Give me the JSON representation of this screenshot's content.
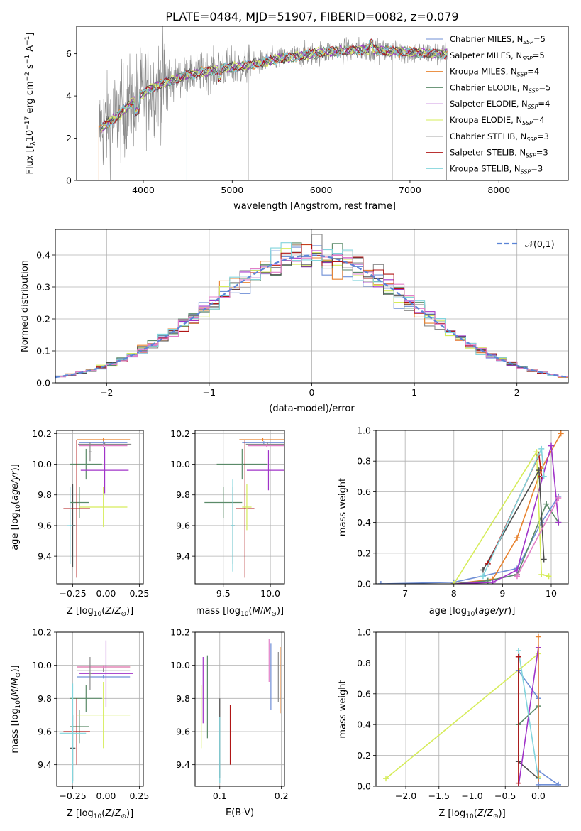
{
  "figure_title": "PLATE=0484, MJD=51907, FIBERID=0082, z=0.079",
  "colors": {
    "Chabrier MILES": "#6f8fd6",
    "Salpeter MILES": "#8a8a8a",
    "Kroupa MILES": "#e8822e",
    "Chabrier ELODIE": "#5a8a68",
    "Salpeter ELODIE": "#a033c8",
    "Kroupa ELODIE": "#d6ec5a",
    "Chabrier STELIB": "#4e4e4e",
    "Salpeter STELIB": "#b01616",
    "Kroupa STELIB": "#82d4dc",
    "pink": "#e27fc8",
    "normal_curve": "#5b84d6"
  },
  "chart_data": [
    {
      "id": "spectrum",
      "type": "line",
      "xlabel": "wavelength [Angstrom, rest frame]",
      "ylabel": "Flux [f_λ 10^-17 erg cm^-2 s^-1 A^-1]",
      "xlim": [
        3250,
        8780
      ],
      "ylim": [
        0,
        7.3
      ],
      "xticks": [
        4000,
        5000,
        6000,
        7000,
        8000
      ],
      "yticks": [
        0,
        2,
        4,
        6
      ],
      "grid": false,
      "legend_position": "top-right",
      "data_series": {
        "x": [
          3500,
          3700,
          3900,
          4000,
          4100,
          4300,
          4500,
          4700,
          4900,
          5100,
          5300,
          5500,
          5700,
          5900,
          6100,
          6300,
          6500,
          6700,
          6900,
          7100,
          7300,
          7420
        ],
        "y": [
          2.4,
          3.0,
          3.8,
          4.1,
          4.4,
          4.7,
          5.0,
          5.15,
          5.3,
          5.4,
          5.55,
          5.75,
          5.85,
          6.0,
          6.1,
          6.15,
          6.2,
          6.15,
          6.1,
          6.05,
          6.0,
          6.0
        ]
      },
      "series": [
        {
          "name": "Chabrier MILES, N_SSP=5",
          "label": "Chabrier MILES, N",
          "sub": "SSP",
          "tail": "=5"
        },
        {
          "name": "Salpeter MILES, N_SSP=5",
          "label": "Salpeter MILES, N",
          "sub": "SSP",
          "tail": "=5"
        },
        {
          "name": "Kroupa MILES, N_SSP=4",
          "label": "Kroupa MILES, N",
          "sub": "SSP",
          "tail": "=4"
        },
        {
          "name": "Chabrier ELODIE, N_SSP=5",
          "label": "Chabrier ELODIE, N",
          "sub": "SSP",
          "tail": "=5"
        },
        {
          "name": "Salpeter ELODIE, N_SSP=4",
          "label": "Salpeter ELODIE, N",
          "sub": "SSP",
          "tail": "=4"
        },
        {
          "name": "Kroupa ELODIE, N_SSP=4",
          "label": "Kroupa ELODIE, N",
          "sub": "SSP",
          "tail": "=4"
        },
        {
          "name": "Chabrier STELIB, N_SSP=3",
          "label": "Chabrier STELIB, N",
          "sub": "SSP",
          "tail": "=3"
        },
        {
          "name": "Salpeter STELIB, N_SSP=3",
          "label": "Salpeter STELIB, N",
          "sub": "SSP",
          "tail": "=3"
        },
        {
          "name": "Kroupa STELIB, N_SSP=3",
          "label": "Kroupa STELIB, N",
          "sub": "SSP",
          "tail": "=3"
        }
      ]
    },
    {
      "id": "residuals",
      "type": "line",
      "xlabel": "(data-model)/error",
      "ylabel": "Normed distribution",
      "xlim": [
        -2.5,
        2.5
      ],
      "ylim": [
        0,
        0.48
      ],
      "xticks": [
        -2,
        -1,
        0,
        1,
        2
      ],
      "yticks": [
        0.0,
        0.1,
        0.2,
        0.3,
        0.4
      ],
      "grid": true,
      "legend_position": "top-right",
      "legend": [
        "N(0,1)"
      ],
      "histogram": {
        "bin_width": 0.1,
        "x_start": -2.5,
        "x_end": 2.5
      },
      "normal_curve": {
        "mean": 0,
        "sigma": 1
      }
    },
    {
      "id": "Z_vs_age",
      "type": "scatter",
      "xlabel": "Z [log10(Z/Z☉)]",
      "ylabel": "age [log10(age/yr)]",
      "xlim": [
        -0.37,
        0.28
      ],
      "ylim": [
        9.22,
        10.22
      ],
      "xticks": [
        -0.25,
        0.0,
        0.25
      ],
      "yticks": [
        9.4,
        9.6,
        9.8,
        10.0,
        10.2
      ],
      "grid": true,
      "errorbars": [
        {
          "series": "Kroupa MILES",
          "x": -0.02,
          "xerr": 0.2,
          "y": 10.16,
          "yerr": 0.01
        },
        {
          "series": "Chabrier MILES",
          "x": -0.02,
          "xerr": 0.18,
          "y": 10.14,
          "yerr": 0.01
        },
        {
          "series": "Salpeter MILES",
          "x": -0.01,
          "xerr": 0.2,
          "y": 10.13,
          "yerr": 0.01
        },
        {
          "series": "pink",
          "x": -0.02,
          "xerr": 0.18,
          "y": 10.12,
          "yerr": 0.01
        },
        {
          "series": "Chabrier ELODIE",
          "x": -0.15,
          "xerr": 0.12,
          "y": 10.0,
          "yerr": 0.1
        },
        {
          "series": "Salpeter ELODIE",
          "x": -0.01,
          "xerr": 0.18,
          "y": 9.96,
          "yerr": 0.15
        },
        {
          "series": "Salpeter MILES",
          "x": -0.12,
          "xerr": 0.01,
          "y": 10.08,
          "yerr": 0.06
        },
        {
          "series": "Chabrier STELIB",
          "x": -0.25,
          "xerr": 0.02,
          "y": 9.6,
          "yerr": 0.27
        },
        {
          "series": "Chabrier ELODIE",
          "x": -0.2,
          "xerr": 0.07,
          "y": 9.75,
          "yerr": 0.1
        },
        {
          "series": "Salpeter STELIB",
          "x": -0.22,
          "xerr": 0.1,
          "y": 9.71,
          "yerr": 0.45
        },
        {
          "series": "Kroupa ELODIE",
          "x": -0.02,
          "xerr": 0.18,
          "y": 9.72,
          "yerr": 0.13
        },
        {
          "series": "Kroupa STELIB",
          "x": -0.27,
          "xerr": 0.02,
          "y": 9.6,
          "yerr": 0.25
        }
      ]
    },
    {
      "id": "mass_vs_age",
      "type": "scatter",
      "xlabel": "mass [log10(M/M☉)]",
      "ylabel": "",
      "xlim": [
        9.2,
        10.15
      ],
      "ylim": [
        9.22,
        10.22
      ],
      "xticks": [
        9.5,
        10.0
      ],
      "yticks": [
        9.4,
        9.6,
        9.8,
        10.0,
        10.2
      ],
      "grid": true,
      "errorbars": [
        {
          "series": "Kroupa MILES",
          "x": 9.92,
          "xerr": 0.25,
          "y": 10.16,
          "yerr": 0.01
        },
        {
          "series": "Chabrier MILES",
          "x": 9.93,
          "xerr": 0.23,
          "y": 10.14,
          "yerr": 0.01
        },
        {
          "series": "Salpeter MILES",
          "x": 9.97,
          "xerr": 0.23,
          "y": 10.13,
          "yerr": 0.01
        },
        {
          "series": "pink",
          "x": 9.96,
          "xerr": 0.2,
          "y": 10.12,
          "yerr": 0.01
        },
        {
          "series": "Chabrier ELODIE",
          "x": 9.7,
          "xerr": 0.27,
          "y": 10.0,
          "yerr": 0.1
        },
        {
          "series": "Salpeter ELODIE",
          "x": 9.98,
          "xerr": 0.23,
          "y": 9.96,
          "yerr": 0.13
        },
        {
          "series": "Chabrier STELIB",
          "x": 9.6,
          "xerr": 0.02,
          "y": 9.6,
          "yerr": 0.25
        },
        {
          "series": "Chabrier ELODIE",
          "x": 9.5,
          "xerr": 0.2,
          "y": 9.75,
          "yerr": 0.1
        },
        {
          "series": "Salpeter STELIB",
          "x": 9.73,
          "xerr": 0.1,
          "y": 9.71,
          "yerr": 0.45
        },
        {
          "series": "Kroupa ELODIE",
          "x": 9.75,
          "xerr": 0.05,
          "y": 9.72,
          "yerr": 0.15
        },
        {
          "series": "Kroupa STELIB",
          "x": 9.6,
          "xerr": 0.02,
          "y": 9.6,
          "yerr": 0.3
        }
      ]
    },
    {
      "id": "age_vs_weight",
      "type": "line",
      "xlabel": "age [log10(age/yr)]",
      "ylabel": "mass weight",
      "xlim": [
        6.4,
        10.35
      ],
      "ylim": [
        0,
        1.0
      ],
      "xticks": [
        7,
        8,
        9,
        10
      ],
      "yticks": [
        0.0,
        0.2,
        0.4,
        0.6,
        0.8,
        1.0
      ],
      "grid": true,
      "lines": [
        {
          "series": "Chabrier MILES",
          "x": [
            6.5,
            8.0,
            9.3,
            9.8,
            10.15
          ],
          "y": [
            0.0,
            0.01,
            0.1,
            0.4,
            0.57
          ]
        },
        {
          "series": "Kroupa MILES",
          "x": [
            8.0,
            8.8,
            9.3,
            9.8,
            10.2
          ],
          "y": [
            0.0,
            0.03,
            0.3,
            0.75,
            0.98
          ]
        },
        {
          "series": "Chabrier ELODIE",
          "x": [
            8.0,
            8.7,
            9.3,
            9.9,
            10.15
          ],
          "y": [
            0.0,
            0.02,
            0.06,
            0.52,
            0.4
          ]
        },
        {
          "series": "Salpeter ELODIE",
          "x": [
            8.0,
            8.8,
            9.3,
            10.0,
            10.15
          ],
          "y": [
            0.0,
            0.01,
            0.09,
            0.9,
            0.4
          ]
        },
        {
          "series": "Kroupa ELODIE",
          "x": [
            8.0,
            9.7,
            9.8,
            9.95
          ],
          "y": [
            0.0,
            0.86,
            0.06,
            0.05
          ]
        },
        {
          "series": "Chabrier STELIB",
          "x": [
            8.6,
            9.75,
            9.85
          ],
          "y": [
            0.09,
            0.74,
            0.16
          ]
        },
        {
          "series": "Salpeter STELIB",
          "x": [
            8.7,
            9.75,
            9.8
          ],
          "y": [
            0.13,
            0.84,
            0.7
          ]
        },
        {
          "series": "Kroupa STELIB",
          "x": [
            8.6,
            9.8,
            9.85
          ],
          "y": [
            0.05,
            0.88,
            0.7
          ]
        },
        {
          "series": "pink",
          "x": [
            9.3,
            10.15
          ],
          "y": [
            0.05,
            0.56
          ]
        }
      ]
    },
    {
      "id": "Z_vs_mass",
      "type": "scatter",
      "xlabel": "Z [log10(Z/Z☉)]",
      "ylabel": "mass [log10(M/M☉)]",
      "xlim": [
        -0.37,
        0.28
      ],
      "ylim": [
        9.27,
        10.2
      ],
      "xticks": [
        -0.25,
        0.0,
        0.25
      ],
      "yticks": [
        9.4,
        9.6,
        9.8,
        10.0,
        10.2
      ],
      "grid": true,
      "errorbars": [
        {
          "series": "Kroupa MILES",
          "x": -0.02,
          "xerr": 0.2,
          "y": 9.99,
          "yerr": 0.01
        },
        {
          "series": "Chabrier MILES",
          "x": -0.02,
          "xerr": 0.2,
          "y": 9.93,
          "yerr": 0.01
        },
        {
          "series": "Salpeter MILES",
          "x": -0.02,
          "xerr": 0.2,
          "y": 9.97,
          "yerr": 0.01
        },
        {
          "series": "pink",
          "x": -0.02,
          "xerr": 0.2,
          "y": 9.99,
          "yerr": 0.01
        },
        {
          "series": "Chabrier ELODIE",
          "x": -0.15,
          "xerr": 0.12,
          "y": 9.8,
          "yerr": 0.08
        },
        {
          "series": "Salpeter ELODIE",
          "x": 0.0,
          "xerr": 0.2,
          "y": 9.95,
          "yerr": 0.2
        },
        {
          "series": "Salpeter MILES",
          "x": -0.12,
          "xerr": 0.01,
          "y": 9.95,
          "yerr": 0.1
        },
        {
          "series": "Chabrier STELIB",
          "x": -0.25,
          "xerr": 0.02,
          "y": 9.5,
          "yerr": 0.2
        },
        {
          "series": "Chabrier ELODIE",
          "x": -0.2,
          "xerr": 0.07,
          "y": 9.63,
          "yerr": 0.1
        },
        {
          "series": "Salpeter STELIB",
          "x": -0.22,
          "xerr": 0.1,
          "y": 9.6,
          "yerr": 0.2
        },
        {
          "series": "Kroupa ELODIE",
          "x": -0.02,
          "xerr": 0.2,
          "y": 9.7,
          "yerr": 0.2
        },
        {
          "series": "Kroupa STELIB",
          "x": -0.25,
          "xerr": 0.1,
          "y": 9.59,
          "yerr": 0.3
        }
      ]
    },
    {
      "id": "ebv_vs_mass",
      "type": "scatter",
      "xlabel": "E(B-V)",
      "ylabel": "",
      "xlim": [
        0.06,
        0.205
      ],
      "ylim": [
        9.27,
        10.2
      ],
      "xticks": [
        0.1,
        0.2
      ],
      "yticks": [
        9.4,
        9.6,
        9.8,
        10.0,
        10.2
      ],
      "grid": true,
      "errorbars": [
        {
          "series": "Kroupa ELODIE",
          "x": 0.07,
          "y": 9.69,
          "yerr": 0.19
        },
        {
          "series": "Salpeter ELODIE",
          "x": 0.073,
          "y": 9.85,
          "yerr": 0.2
        },
        {
          "series": "Chabrier ELODIE",
          "x": 0.08,
          "y": 9.81,
          "yerr": 0.25
        },
        {
          "series": "Chabrier STELIB",
          "x": 0.1,
          "y": 9.56,
          "yerr": 0.24
        },
        {
          "series": "Kroupa STELIB",
          "x": 0.1,
          "y": 9.49,
          "yerr": 0.2
        },
        {
          "series": "Salpeter STELIB",
          "x": 0.117,
          "y": 9.58,
          "yerr": 0.18
        },
        {
          "series": "pink",
          "x": 0.18,
          "y": 10.03,
          "yerr": 0.13
        },
        {
          "series": "Chabrier MILES",
          "x": 0.183,
          "y": 9.93,
          "yerr": 0.2
        },
        {
          "series": "Salpeter MILES",
          "x": 0.195,
          "y": 9.93,
          "yerr": 0.15
        },
        {
          "series": "Kroupa MILES",
          "x": 0.198,
          "y": 9.91,
          "yerr": 0.2
        }
      ]
    },
    {
      "id": "Z_vs_weight",
      "type": "line",
      "xlabel": "Z [log10(Z/Z☉)]",
      "ylabel": "mass weight",
      "xlim": [
        -2.45,
        0.45
      ],
      "ylim": [
        0,
        1.0
      ],
      "xticks": [
        -2.0,
        -1.5,
        -1.0,
        -0.5,
        0.0
      ],
      "yticks": [
        0.0,
        0.2,
        0.4,
        0.6,
        0.8,
        1.0
      ],
      "grid": true,
      "lines": [
        {
          "series": "Kroupa ELODIE",
          "x": [
            -2.3,
            0.0,
            0.0
          ],
          "y": [
            0.05,
            0.86,
            0.06
          ]
        },
        {
          "series": "Chabrier MILES",
          "x": [
            -0.3,
            0.0,
            0.0,
            0.3
          ],
          "y": [
            0.75,
            0.57,
            0.1,
            0.01
          ]
        },
        {
          "series": "Chabrier STELIB",
          "x": [
            -0.3,
            -0.3,
            0.0
          ],
          "y": [
            0.84,
            0.16,
            0.05
          ]
        },
        {
          "series": "Chabrier ELODIE",
          "x": [
            -0.3,
            0.0,
            0.0
          ],
          "y": [
            0.4,
            0.52,
            0.0
          ]
        },
        {
          "series": "Salpeter ELODIE",
          "x": [
            -0.3,
            0.0,
            0.0
          ],
          "y": [
            0.0,
            0.9,
            0.0
          ]
        },
        {
          "series": "Kroupa STELIB",
          "x": [
            -0.3,
            0.0
          ],
          "y": [
            0.88,
            0.05
          ]
        },
        {
          "series": "Kroupa MILES",
          "x": [
            0.0,
            0.0
          ],
          "y": [
            0.97,
            0.0
          ]
        },
        {
          "series": "Salpeter STELIB",
          "x": [
            -0.3,
            -0.3
          ],
          "y": [
            0.84,
            0.02
          ]
        },
        {
          "series": "Chabrier MILES",
          "x": [
            0.3,
            0.0
          ],
          "y": [
            0.01,
            0.01
          ]
        }
      ]
    }
  ]
}
